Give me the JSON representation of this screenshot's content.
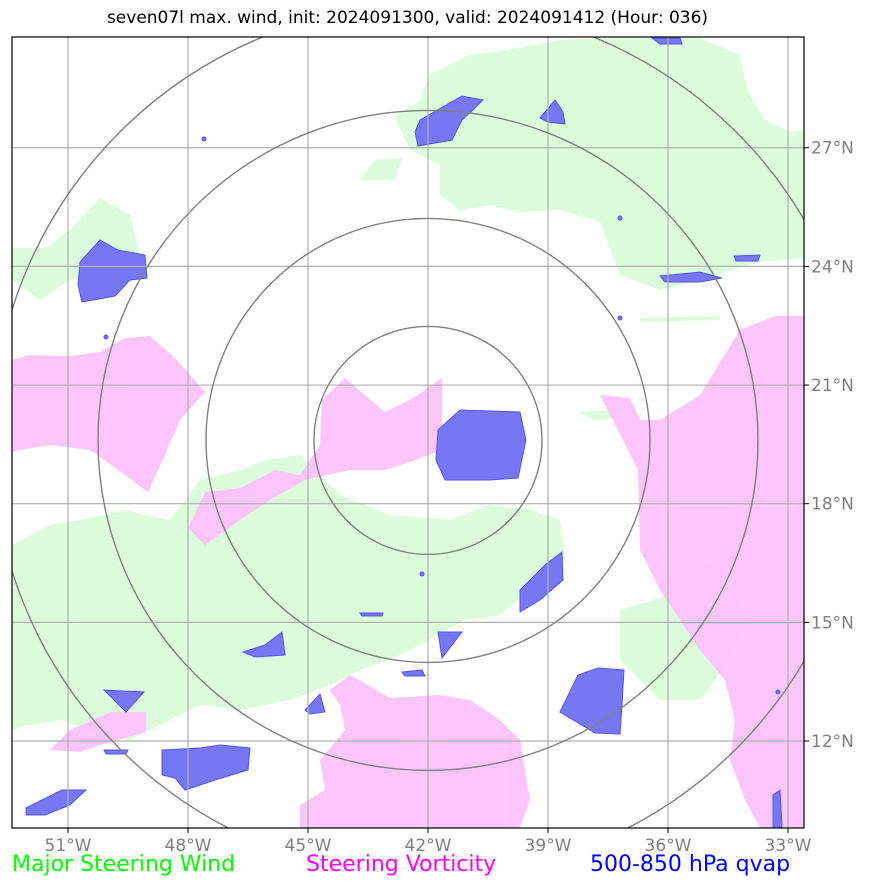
{
  "title": "seven07l max. wind, init: 2024091300, valid: 2024091412 (Hour: 036)",
  "map": {
    "lon_range": [
      -52.4,
      -32.6
    ],
    "lat_range": [
      9.8,
      29.8
    ],
    "lon_ticks": [
      {
        "value": -51,
        "label": "51°W"
      },
      {
        "value": -48,
        "label": "48°W"
      },
      {
        "value": -45,
        "label": "45°W"
      },
      {
        "value": -42,
        "label": "42°W"
      },
      {
        "value": -39,
        "label": "39°W"
      },
      {
        "value": -36,
        "label": "36°W"
      },
      {
        "value": -33,
        "label": "33°W"
      }
    ],
    "lat_ticks": [
      {
        "value": 27,
        "label": "27°N"
      },
      {
        "value": 24,
        "label": "24°N"
      },
      {
        "value": 21,
        "label": "21°N"
      },
      {
        "value": 18,
        "label": "18°N"
      },
      {
        "value": 15,
        "label": "15°N"
      },
      {
        "value": 12,
        "label": "12°N"
      }
    ],
    "center": {
      "lon": -42.0,
      "lat": 19.6
    },
    "range_rings_deg": [
      2.85,
      5.55,
      8.25,
      10.9
    ],
    "colors": {
      "steering_wind": "#00ff00",
      "steering_vorticity": "#ff00ff",
      "qvap": "#0000ff",
      "wind_fill": "#dcfcdc",
      "vort_fill": "#fcc0fc",
      "qvap_fill": "#7777f4",
      "grid": "#b0b0b0",
      "ring": "#808080"
    }
  },
  "legend": {
    "wind": "Major Steering Wind",
    "vorticity": "Steering Vorticity",
    "qvap": "500-850 hPa qvap"
  }
}
